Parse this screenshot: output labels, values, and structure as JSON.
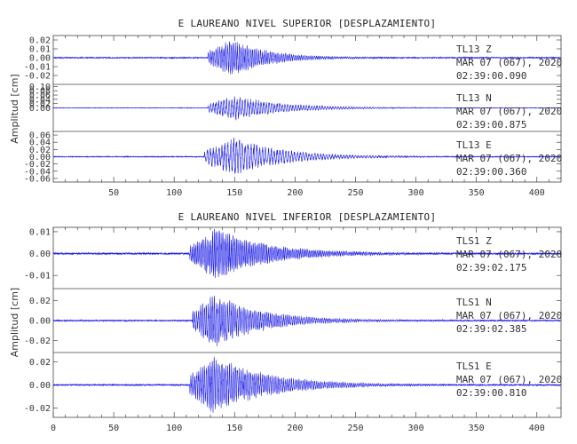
{
  "chart_data": [
    {
      "type": "line",
      "title": "E LAUREANO NIVEL SUPERIOR [DESPLAZAMIENTO]",
      "ylabel": "Amplitud [cm]",
      "xlim": [
        0,
        420
      ],
      "x_ticks": [
        "50",
        "100",
        "150",
        "200",
        "250",
        "300",
        "350",
        "400"
      ],
      "trace_color": "#1f1fe6",
      "panels": [
        {
          "station": "TL13",
          "component": "Z",
          "date": "MAR 07 (067), 2020",
          "time": "02:39:00.090",
          "ylim": [
            -0.03,
            0.025
          ],
          "y_ticks": [
            0.02,
            0.01,
            0.0,
            -0.01,
            -0.02
          ],
          "y_tick_labels": [
            "0.02",
            "0.01",
            "0.00",
            "-0.01",
            "-0.02"
          ],
          "onset": 128,
          "peak_time": 148,
          "decay": 30,
          "noise": 0.0006,
          "peak_amp": 0.022,
          "period": 1.6
        },
        {
          "station": "TL13",
          "component": "N",
          "date": "MAR 07 (067), 2020",
          "time": "02:39:00.875",
          "ylim": [
            -0.11,
            0.11
          ],
          "y_ticks": [
            0.1,
            0.08,
            0.06,
            0.04,
            0.02,
            0.0
          ],
          "y_tick_labels": [
            "0.10",
            "0.08",
            "0.06",
            "0.04",
            "0.02",
            "0.00"
          ],
          "onset": 128,
          "peak_time": 150,
          "decay": 40,
          "noise": 0.001,
          "peak_amp": 0.06,
          "period": 2.2
        },
        {
          "station": "TL13",
          "component": "E",
          "date": "MAR 07 (067), 2020",
          "time": "02:39:00.360",
          "ylim": [
            -0.07,
            0.07
          ],
          "y_ticks": [
            0.06,
            0.04,
            0.02,
            0.0,
            -0.02,
            -0.04,
            -0.06
          ],
          "y_tick_labels": [
            "0.06",
            "0.04",
            "0.02",
            "0.00",
            "-0.02",
            "-0.04",
            "-0.06"
          ],
          "onset": 125,
          "peak_time": 150,
          "decay": 40,
          "noise": 0.001,
          "peak_amp": 0.055,
          "period": 2.4
        }
      ]
    },
    {
      "type": "line",
      "title": "E LAUREANO NIVEL INFERIOR [DESPLAZAMIENTO]",
      "ylabel": "Amplitud [cm]",
      "xlim": [
        0,
        420
      ],
      "x_ticks": [
        "0",
        "50",
        "100",
        "150",
        "200",
        "250",
        "300",
        "350",
        "400"
      ],
      "trace_color": "#1f1fe6",
      "panels": [
        {
          "station": "TLS1",
          "component": "Z",
          "date": "MAR 07 (067), 2020",
          "time": "02:39:02.175",
          "ylim": [
            -0.016,
            0.012
          ],
          "y_ticks": [
            0.01,
            0.0,
            -0.01
          ],
          "y_tick_labels": [
            "0.01",
            "0.00",
            "-0.01"
          ],
          "onset": 113,
          "peak_time": 135,
          "decay": 45,
          "noise": 0.0004,
          "peak_amp": 0.012,
          "period": 1.4
        },
        {
          "station": "TLS1",
          "component": "N",
          "date": "MAR 07 (067), 2020",
          "time": "02:39:02.385",
          "ylim": [
            -0.032,
            0.032
          ],
          "y_ticks": [
            0.02,
            0.0,
            -0.02
          ],
          "y_tick_labels": [
            "0.02",
            "0.00",
            "-0.02"
          ],
          "onset": 115,
          "peak_time": 133,
          "decay": 40,
          "noise": 0.0006,
          "peak_amp": 0.028,
          "period": 1.6
        },
        {
          "station": "TLS1",
          "component": "E",
          "date": "MAR 07 (067), 2020",
          "time": "02:39:00.810",
          "ylim": [
            -0.028,
            0.028
          ],
          "y_ticks": [
            0.02,
            0.0,
            -0.02
          ],
          "y_tick_labels": [
            "0.02",
            "0.00",
            "-0.02"
          ],
          "onset": 113,
          "peak_time": 133,
          "decay": 45,
          "noise": 0.0006,
          "peak_amp": 0.026,
          "period": 1.6
        }
      ]
    }
  ]
}
